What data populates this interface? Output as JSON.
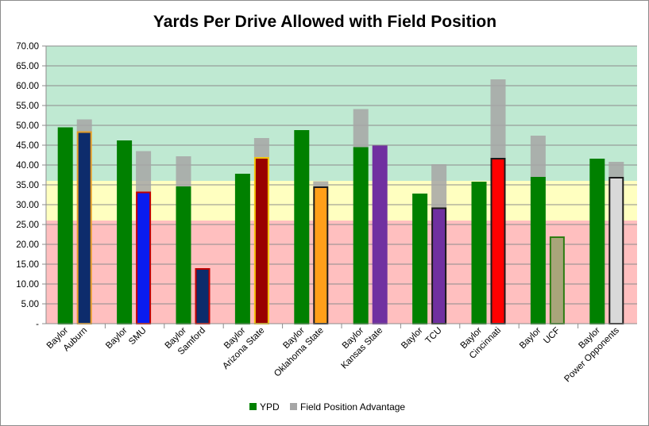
{
  "chart_data": {
    "type": "bar",
    "title": "Yards Per Drive Allowed with Field Position",
    "xlabel": "",
    "ylabel": "",
    "ylim": [
      0,
      70
    ],
    "ytick_step": 5,
    "ytick_labels": [
      "-",
      "5.00",
      "10.00",
      "15.00",
      "20.00",
      "25.00",
      "30.00",
      "35.00",
      "40.00",
      "45.00",
      "50.00",
      "55.00",
      "60.00",
      "65.00",
      "70.00"
    ],
    "background_bands": [
      {
        "from": 0,
        "to": 26,
        "color": "#ffbfbf"
      },
      {
        "from": 26,
        "to": 36,
        "color": "#ffffc0"
      },
      {
        "from": 36,
        "to": 70,
        "color": "#bfe9d2"
      }
    ],
    "legend": {
      "placement": "bottom-center",
      "entries": [
        {
          "label": "YPD",
          "color": "#008000"
        },
        {
          "label": "Field Position Advantage",
          "color": "#a6a6a6"
        }
      ]
    },
    "groups": [
      {
        "categories": [
          "Baylor",
          "Auburn"
        ],
        "bars": [
          {
            "team": "Baylor",
            "ypd": 49.5,
            "field_position_advantage": 0,
            "fill": "#008000",
            "outline": "#008000"
          },
          {
            "team": "Auburn",
            "ypd": 48.5,
            "field_position_advantage": 3.0,
            "fill": "#0d2c6c",
            "outline": "#e69c24"
          }
        ]
      },
      {
        "categories": [
          "Baylor",
          "SMU"
        ],
        "bars": [
          {
            "team": "Baylor",
            "ypd": 46.2,
            "field_position_advantage": 0,
            "fill": "#008000",
            "outline": "#008000"
          },
          {
            "team": "SMU",
            "ypd": 33.3,
            "field_position_advantage": 10.2,
            "fill": "#0a1cf0",
            "outline": "#c00000"
          }
        ]
      },
      {
        "categories": [
          "Baylor",
          "Samford"
        ],
        "bars": [
          {
            "team": "Baylor",
            "ypd": 34.6,
            "field_position_advantage": 7.6,
            "fill": "#008000",
            "outline": "#008000"
          },
          {
            "team": "Samford",
            "ypd": 14.0,
            "field_position_advantage": 0,
            "fill": "#0d2c6c",
            "outline": "#c00000"
          }
        ]
      },
      {
        "categories": [
          "Baylor",
          "Arizona State"
        ],
        "bars": [
          {
            "team": "Baylor",
            "ypd": 37.8,
            "field_position_advantage": 0,
            "fill": "#008000",
            "outline": "#008000"
          },
          {
            "team": "Arizona State",
            "ypd": 42.0,
            "field_position_advantage": 4.8,
            "fill": "#990000",
            "outline": "#f2c40c"
          }
        ]
      },
      {
        "categories": [
          "Baylor",
          "Oklahoma State"
        ],
        "bars": [
          {
            "team": "Baylor",
            "ypd": 48.8,
            "field_position_advantage": 0,
            "fill": "#008000",
            "outline": "#008000"
          },
          {
            "team": "Oklahoma State",
            "ypd": 34.6,
            "field_position_advantage": 1.3,
            "fill": "#ff9f1a",
            "outline": "#1a1a1a"
          }
        ]
      },
      {
        "categories": [
          "Baylor",
          "Kansas State"
        ],
        "bars": [
          {
            "team": "Baylor",
            "ypd": 44.5,
            "field_position_advantage": 9.6,
            "fill": "#008000",
            "outline": "#008000"
          },
          {
            "team": "Kansas State",
            "ypd": 44.9,
            "field_position_advantage": 0,
            "fill": "#7030a0",
            "outline": "#7030a0"
          }
        ]
      },
      {
        "categories": [
          "Baylor",
          "TCU"
        ],
        "bars": [
          {
            "team": "Baylor",
            "ypd": 32.8,
            "field_position_advantage": 0,
            "fill": "#008000",
            "outline": "#008000"
          },
          {
            "team": "TCU",
            "ypd": 29.3,
            "field_position_advantage": 10.9,
            "fill": "#7030a0",
            "outline": "#1a1a1a"
          }
        ]
      },
      {
        "categories": [
          "Baylor",
          "Cincinnati"
        ],
        "bars": [
          {
            "team": "Baylor",
            "ypd": 35.8,
            "field_position_advantage": 0,
            "fill": "#008000",
            "outline": "#008000"
          },
          {
            "team": "Cincinnati",
            "ypd": 41.8,
            "field_position_advantage": 19.8,
            "fill": "#ff0000",
            "outline": "#1a1a1a"
          }
        ]
      },
      {
        "categories": [
          "Baylor",
          "UCF"
        ],
        "bars": [
          {
            "team": "Baylor",
            "ypd": 37.0,
            "field_position_advantage": 10.4,
            "fill": "#008000",
            "outline": "#008000"
          },
          {
            "team": "UCF",
            "ypd": 22.0,
            "field_position_advantage": 0,
            "fill": "#a9a57a",
            "outline": "#2e7d12"
          }
        ]
      },
      {
        "categories": [
          "Baylor",
          "Power Opponents"
        ],
        "bars": [
          {
            "team": "Baylor",
            "ypd": 41.6,
            "field_position_advantage": 0,
            "fill": "#008000",
            "outline": "#008000"
          },
          {
            "team": "Power Opponents",
            "ypd": 37.0,
            "field_position_advantage": 3.8,
            "fill": "#d9d9d9",
            "outline": "#1a1a1a"
          }
        ]
      }
    ]
  }
}
